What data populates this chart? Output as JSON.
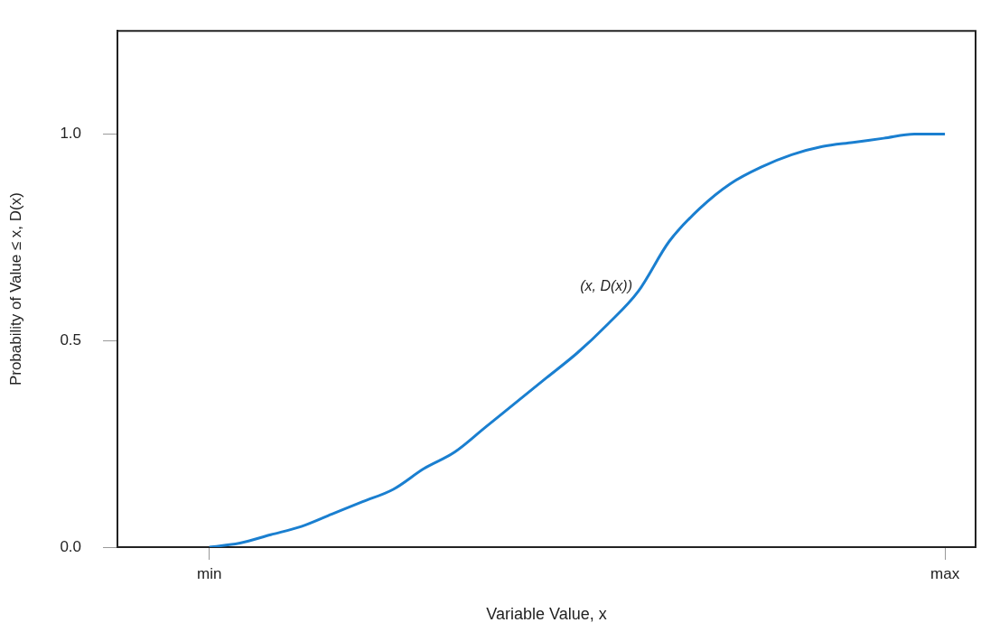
{
  "chart_data": {
    "type": "line",
    "xlabel": "Variable Value, x",
    "ylabel": "Probability of Value ≤ x, D(x)",
    "categories": [
      null,
      null,
      null,
      "min",
      null,
      null,
      null,
      null,
      null,
      null,
      null,
      null,
      null,
      null,
      null,
      null,
      null,
      null,
      null,
      null,
      null,
      null,
      null,
      null,
      null,
      null,
      null,
      "max",
      null
    ],
    "series": [
      {
        "color": "#1a7fd0",
        "values": [
          null,
          null,
          null,
          0,
          0.01,
          0.03,
          0.05,
          0.08,
          0.11,
          0.14,
          0.19,
          0.23,
          0.29,
          0.35,
          0.41,
          0.47,
          0.54,
          0.62,
          0.74,
          0.82,
          0.88,
          0.92,
          0.95,
          0.97,
          0.98,
          0.99,
          1.0,
          1.0,
          null
        ]
      }
    ],
    "ylim": [
      0,
      1.25
    ],
    "yticks": [
      {
        "value": 0,
        "label": "0.0"
      },
      {
        "value": 0.5,
        "label": "0.5"
      },
      {
        "value": 1,
        "label": "1.0"
      }
    ],
    "annotations": [
      "(x, D(x))"
    ],
    "grid": false,
    "legend": false,
    "marker": "none",
    "line_style": "solid"
  }
}
